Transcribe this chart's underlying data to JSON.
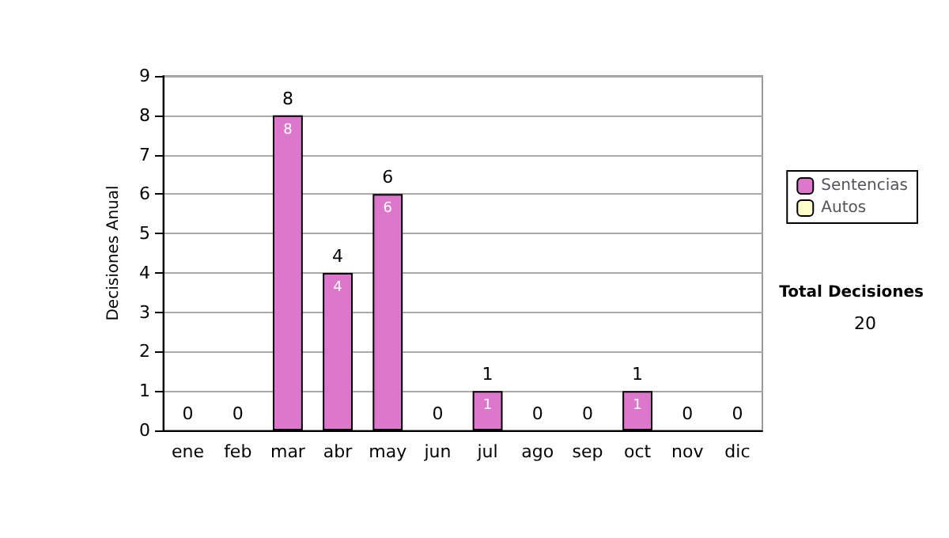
{
  "chart_data": {
    "type": "bar",
    "ylabel": "Decisiones Anual",
    "categories": [
      "ene",
      "feb",
      "mar",
      "abr",
      "may",
      "jun",
      "jul",
      "ago",
      "sep",
      "oct",
      "nov",
      "dic"
    ],
    "series": [
      {
        "name": "Sentencias",
        "color": "#dd77cc",
        "values": [
          0,
          0,
          8,
          4,
          6,
          0,
          1,
          0,
          0,
          1,
          0,
          0
        ],
        "value_labels": [
          null,
          null,
          "8",
          "4",
          "6",
          null,
          "1",
          null,
          null,
          "1",
          null,
          null
        ]
      },
      {
        "name": "Autos",
        "color": "#ffffcc",
        "values": [
          0,
          0,
          0,
          0,
          0,
          0,
          0,
          0,
          0,
          0,
          0,
          0
        ]
      }
    ],
    "stacked": true,
    "totals": [
      "0",
      "0",
      "8",
      "4",
      "6",
      "0",
      "1",
      "0",
      "0",
      "1",
      "0",
      "0"
    ],
    "ylim": [
      0,
      9
    ],
    "yticks": [
      0,
      1,
      2,
      3,
      4,
      5,
      6,
      7,
      8,
      9
    ],
    "grid": "y",
    "legend": "right",
    "annotations": [
      "Total Decisiones",
      "20"
    ]
  }
}
